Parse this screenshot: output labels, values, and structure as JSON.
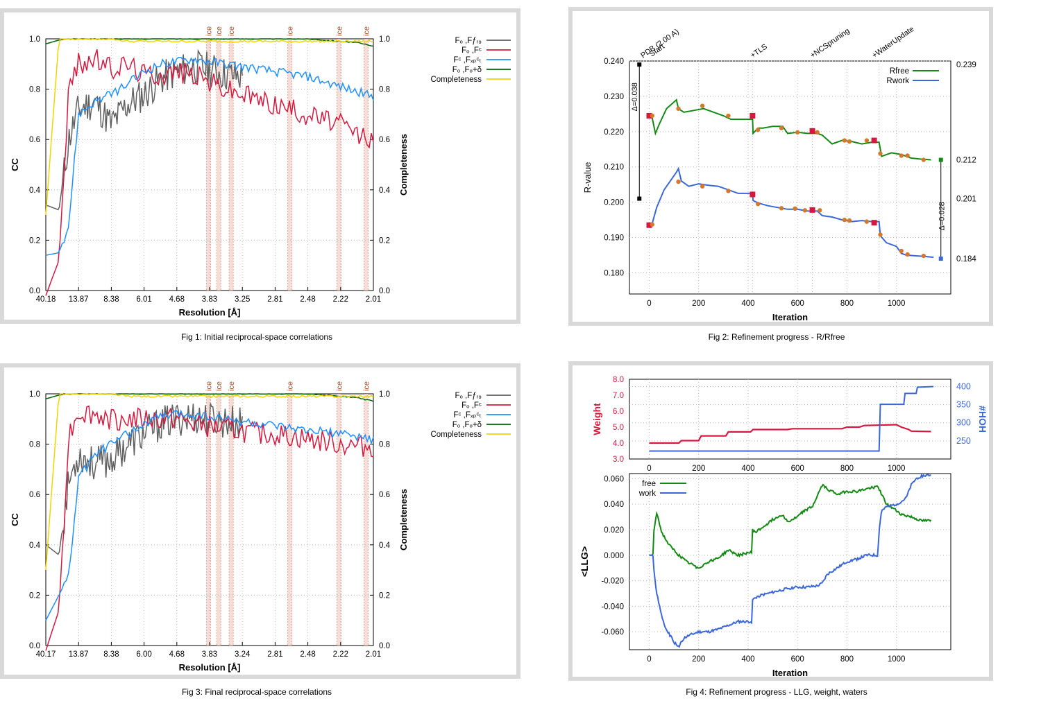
{
  "colors": {
    "gray": "#606060",
    "red": "#d6183e",
    "blue": "#1e90ff",
    "green": "#006400",
    "yellow": "#f3d400",
    "rfree": "#138a13",
    "rwork": "#3c67db",
    "orange": "#d2792d",
    "ice_text": "#a0522d",
    "ice_band": "#f1d6cf",
    "weight_red": "#d6183e",
    "hoh_blue": "#3c67db",
    "grid": "#b5b5b5"
  },
  "captions": {
    "fig1": "Fig 1:  Initial reciprocal-space correlations",
    "fig2": "Fig 2:  Refinement progress - R/Rfree",
    "fig3": "Fig 3:  Final reciprocal-space correlations",
    "fig4": "Fig 4:  Refinement progress - LLG, weight, waters"
  },
  "fig1": {
    "xlabel": "Resolution [Å]",
    "ylabel": "CC",
    "y2label": "Completeness",
    "xticks": [
      "40.18",
      "13.87",
      "8.38",
      "6.01",
      "4.68",
      "3.83",
      "3.25",
      "2.81",
      "2.48",
      "2.22",
      "2.01"
    ],
    "yticks": [
      "0.0",
      "0.2",
      "0.4",
      "0.6",
      "0.8",
      "1.0"
    ],
    "ice_label": "ice",
    "legend": [
      "Fₒ ,Fƒᵣ₉",
      "Fₒ ,Fᶜ",
      "Fᶜ ,Fₓₚᶜₜ",
      "Fₒ ,Fₒ+δ",
      "Completeness"
    ]
  },
  "fig3": {
    "xlabel": "Resolution [Å]",
    "ylabel": "CC",
    "y2label": "Completeness",
    "xticks": [
      "40.17",
      "13.87",
      "8.38",
      "6.00",
      "4.68",
      "3.83",
      "3.24",
      "2.81",
      "2.48",
      "2.22",
      "2.01"
    ],
    "yticks": [
      "0.0",
      "0.2",
      "0.4",
      "0.6",
      "0.8",
      "1.0"
    ],
    "ice_label": "ice",
    "legend": [
      "Fₒ ,Fƒᵣ₉",
      "Fₒ ,Fᶜ",
      "Fᶜ ,Fₓₚᶜₜ",
      "Fₒ ,Fₒ+δ",
      "Completeness"
    ]
  },
  "fig2": {
    "xlabel": "Iteration",
    "ylabel": "R-value",
    "xticks": [
      "0",
      "200",
      "400",
      "600",
      "800",
      "1000"
    ],
    "yticks": [
      "0.180",
      "0.190",
      "0.200",
      "0.210",
      "0.220",
      "0.230",
      "0.240"
    ],
    "legend": [
      "Rfree",
      "Rwork"
    ],
    "top_labels": [
      "PDB (2.00 A)",
      "Start",
      "+TLS",
      "+NCSpruning",
      "+WaterUpdate"
    ],
    "right_values": [
      "0.239",
      "0.212",
      "0.201",
      "0.184"
    ],
    "delta_left": "Δ=0.038",
    "delta_right": "Δ=0.028"
  },
  "fig4": {
    "xlabel": "Iteration",
    "ylabel_llg": "<LLG>",
    "ylabel_weight": "Weight",
    "ylabel_hoh": "#HOH",
    "xticks": [
      "0",
      "200",
      "400",
      "600",
      "800",
      "1000"
    ],
    "weight_ticks": [
      "3.0",
      "4.0",
      "5.0",
      "6.0",
      "7.0",
      "8.0"
    ],
    "hoh_ticks": [
      "250",
      "300",
      "350",
      "400"
    ],
    "llg_ticks": [
      "-0.060",
      "-0.040",
      "-0.020",
      "0.000",
      "0.020",
      "0.040",
      "0.060"
    ],
    "legend": [
      "free",
      "work"
    ]
  },
  "chart_data": [
    {
      "type": "line",
      "title": "Fig 1:  Initial reciprocal-space correlations",
      "xlabel": "Resolution [Å]",
      "ylabel": "CC",
      "y2label": "Completeness",
      "x_tick_labels": [
        "40.18",
        "13.87",
        "8.38",
        "6.01",
        "4.68",
        "3.83",
        "3.25",
        "2.81",
        "2.48",
        "2.22",
        "2.01"
      ],
      "ylim": [
        0.0,
        1.0
      ],
      "ice_rings_resolution": [
        3.9,
        3.67,
        3.44,
        2.67,
        2.25,
        2.07
      ],
      "x_bin_fraction": [
        0.0,
        0.04,
        0.07,
        0.1,
        0.15,
        0.2,
        0.25,
        0.3,
        0.35,
        0.4,
        0.45,
        0.5,
        0.55,
        0.6,
        0.65,
        0.7,
        0.75,
        0.8,
        0.85,
        0.9,
        0.95,
        1.0
      ],
      "series": [
        {
          "name": "Fₒ ,Fƒᵣ₉",
          "values": [
            0.34,
            0.32,
            0.6,
            0.72,
            0.75,
            0.66,
            0.74,
            0.78,
            0.84,
            0.87,
            0.89,
            0.88,
            0.86,
            0.85
          ]
        },
        {
          "name": "Fₒ ,Fᶜ",
          "values": [
            -0.02,
            0.12,
            0.8,
            0.9,
            0.92,
            0.88,
            0.9,
            0.86,
            0.86,
            0.87,
            0.86,
            0.83,
            0.8,
            0.78,
            0.76,
            0.74,
            0.72,
            0.7,
            0.68,
            0.66,
            0.62,
            0.6
          ]
        },
        {
          "name": "Fᶜ ,Fₓₚᶜₜ",
          "values": [
            0.14,
            0.15,
            0.26,
            0.7,
            0.75,
            0.78,
            0.82,
            0.87,
            0.9,
            0.91,
            0.92,
            0.91,
            0.9,
            0.89,
            0.88,
            0.87,
            0.86,
            0.85,
            0.83,
            0.81,
            0.79,
            0.77
          ]
        },
        {
          "name": "Fₒ ,Fₒ+δ",
          "values": [
            0.98,
            0.995,
            1.0,
            1.0,
            1.0,
            1.0,
            1.0,
            1.0,
            1.0,
            1.0,
            1.0,
            1.0,
            1.0,
            1.0,
            1.0,
            1.0,
            1.0,
            1.0,
            0.995,
            0.99,
            0.985,
            0.97
          ]
        },
        {
          "name": "Completeness",
          "values": [
            0.3,
            1.0,
            1.0,
            1.0,
            1.0,
            1.0,
            0.99,
            0.99,
            0.99,
            0.99,
            0.99,
            0.99,
            0.99,
            0.99,
            0.99,
            0.99,
            0.99,
            0.99,
            0.99,
            0.99,
            0.99,
            0.99
          ]
        }
      ]
    },
    {
      "type": "line",
      "title": "Fig 2:  Refinement progress - R/Rfree",
      "xlabel": "Iteration",
      "ylabel": "R-value",
      "xlim": [
        -80,
        1220
      ],
      "ylim": [
        0.174,
        0.24
      ],
      "series": [
        {
          "name": "Rfree",
          "x": [
            0,
            10,
            25,
            40,
            70,
            110,
            118,
            140,
            180,
            220,
            260,
            300,
            330,
            360,
            418,
            420,
            440,
            460,
            500,
            540,
            560,
            600,
            640,
            680,
            700,
            740,
            780,
            820,
            860,
            900,
            930,
            940,
            980,
            1020,
            1060,
            1100,
            1140
          ],
          "values": [
            0.2245,
            0.2245,
            0.2195,
            0.222,
            0.2265,
            0.229,
            0.2265,
            0.2255,
            0.226,
            0.2265,
            0.2255,
            0.2245,
            0.2235,
            0.2235,
            0.2235,
            0.2195,
            0.221,
            0.221,
            0.2215,
            0.2215,
            0.2195,
            0.2198,
            0.2195,
            0.2195,
            0.219,
            0.2165,
            0.2175,
            0.2172,
            0.2165,
            0.217,
            0.217,
            0.213,
            0.214,
            0.2135,
            0.2125,
            0.2122,
            0.212
          ]
        },
        {
          "name": "Rwork",
          "x": [
            0,
            10,
            30,
            60,
            100,
            110,
            118,
            130,
            160,
            200,
            240,
            280,
            320,
            360,
            418,
            420,
            440,
            480,
            520,
            560,
            600,
            640,
            680,
            700,
            740,
            780,
            820,
            860,
            900,
            930,
            935,
            960,
            1000,
            1020,
            1040,
            1080,
            1120,
            1150
          ],
          "values": [
            0.1935,
            0.1935,
            0.1985,
            0.2035,
            0.2075,
            0.2085,
            0.2095,
            0.206,
            0.2045,
            0.2052,
            0.2048,
            0.2045,
            0.2035,
            0.2025,
            0.2025,
            0.2005,
            0.1998,
            0.199,
            0.1985,
            0.198,
            0.198,
            0.1975,
            0.1975,
            0.1962,
            0.1958,
            0.195,
            0.1945,
            0.1948,
            0.1945,
            0.1945,
            0.1905,
            0.1885,
            0.1875,
            0.1855,
            0.185,
            0.1848,
            0.1846,
            0.1844
          ]
        }
      ],
      "markers_rfree": {
        "x": [
          0,
          418,
          660,
          910
        ],
        "values": [
          0.2245,
          0.2245,
          0.2202,
          0.2175
        ]
      },
      "markers_rwork": {
        "x": [
          0,
          418,
          660,
          910
        ],
        "values": [
          0.1935,
          0.2022,
          0.1978,
          0.1942
        ]
      },
      "dots_rfree": {
        "x": [
          12,
          118,
          215,
          320,
          440,
          535,
          600,
          680,
          790,
          810,
          880,
          935,
          1020,
          1045,
          1110
        ],
        "values": [
          0.2245,
          0.2265,
          0.2273,
          0.2245,
          0.2205,
          0.221,
          0.2198,
          0.2198,
          0.2175,
          0.2172,
          0.2175,
          0.2138,
          0.2132,
          0.2132,
          0.212
        ]
      },
      "dots_rwork": {
        "x": [
          12,
          118,
          215,
          320,
          440,
          535,
          590,
          630,
          690,
          790,
          810,
          880,
          935,
          1020,
          1045,
          1110
        ],
        "values": [
          0.1937,
          0.2058,
          0.2045,
          0.2032,
          0.1995,
          0.1983,
          0.1982,
          0.1977,
          0.1977,
          0.195,
          0.1948,
          0.1945,
          0.1908,
          0.1862,
          0.1852,
          0.1848
        ]
      },
      "reference": {
        "pdb_rfree": 0.239,
        "pdb_rwork": 0.201,
        "final_rfree": 0.212,
        "final_rwork": 0.184
      }
    },
    {
      "type": "line",
      "title": "Fig 3:  Final reciprocal-space correlations",
      "xlabel": "Resolution [Å]",
      "ylabel": "CC",
      "y2label": "Completeness",
      "x_tick_labels": [
        "40.17",
        "13.87",
        "8.38",
        "6.00",
        "4.68",
        "3.83",
        "3.24",
        "2.81",
        "2.48",
        "2.22",
        "2.01"
      ],
      "ylim": [
        0.0,
        1.0
      ],
      "ice_rings_resolution": [
        3.9,
        3.67,
        3.44,
        2.67,
        2.25,
        2.07
      ],
      "x_bin_fraction": [
        0.0,
        0.04,
        0.07,
        0.1,
        0.15,
        0.2,
        0.25,
        0.3,
        0.35,
        0.4,
        0.45,
        0.5,
        0.55,
        0.6,
        0.65,
        0.7,
        0.75,
        0.8,
        0.85,
        0.9,
        0.95,
        1.0
      ],
      "series": [
        {
          "name": "Fₒ ,Fƒᵣ₉",
          "values": [
            0.4,
            0.36,
            0.65,
            0.76,
            0.72,
            0.74,
            0.8,
            0.84,
            0.88,
            0.9,
            0.91,
            0.9,
            0.89,
            0.88
          ]
        },
        {
          "name": "Fₒ ,Fᶜ",
          "values": [
            -0.02,
            0.14,
            0.84,
            0.93,
            0.92,
            0.9,
            0.9,
            0.9,
            0.9,
            0.9,
            0.88,
            0.87,
            0.86,
            0.85,
            0.84,
            0.84,
            0.83,
            0.82,
            0.81,
            0.8,
            0.79,
            0.79
          ]
        },
        {
          "name": "Fᶜ ,Fₓₚᶜₜ",
          "values": [
            0.1,
            0.2,
            0.28,
            0.66,
            0.76,
            0.8,
            0.84,
            0.88,
            0.91,
            0.92,
            0.92,
            0.91,
            0.9,
            0.89,
            0.88,
            0.87,
            0.86,
            0.85,
            0.85,
            0.84,
            0.83,
            0.82
          ]
        },
        {
          "name": "Fₒ ,Fₒ+δ",
          "values": [
            0.98,
            0.995,
            1.0,
            1.0,
            1.0,
            1.0,
            1.0,
            1.0,
            1.0,
            1.0,
            1.0,
            1.0,
            1.0,
            1.0,
            1.0,
            1.0,
            1.0,
            1.0,
            0.995,
            0.99,
            0.985,
            0.97
          ]
        },
        {
          "name": "Completeness",
          "values": [
            0.3,
            1.0,
            1.0,
            1.0,
            1.0,
            1.0,
            0.99,
            0.99,
            0.99,
            0.99,
            0.99,
            0.99,
            0.99,
            0.99,
            0.99,
            0.99,
            0.99,
            0.99,
            0.99,
            0.99,
            0.99,
            0.99
          ]
        }
      ]
    },
    {
      "type": "line",
      "title": "Fig 4:  Refinement progress - LLG, weight, waters",
      "xlabel": "Iteration",
      "xlim": [
        -80,
        1220
      ],
      "weight_ylim": [
        3.0,
        8.0
      ],
      "hoh_ylim": [
        200,
        420
      ],
      "llg_ylim": [
        -0.074,
        0.064
      ],
      "series": [
        {
          "name": "Weight",
          "x": [
            0,
            120,
            130,
            200,
            210,
            310,
            320,
            410,
            420,
            560,
            580,
            780,
            800,
            850,
            870,
            1000,
            1020,
            1050,
            1060,
            1140
          ],
          "values": [
            4.0,
            4.0,
            4.15,
            4.15,
            4.45,
            4.45,
            4.7,
            4.7,
            4.85,
            4.85,
            4.9,
            4.9,
            5.0,
            5.0,
            5.1,
            5.15,
            5.0,
            4.85,
            4.75,
            4.72
          ]
        },
        {
          "name": "#HOH",
          "x": [
            0,
            930,
            935,
            1030,
            1035,
            1080,
            1085,
            1150
          ],
          "values": [
            222,
            222,
            351,
            351,
            381,
            381,
            398,
            400
          ]
        },
        {
          "name": "free",
          "x": [
            0,
            15,
            18,
            30,
            50,
            80,
            120,
            150,
            180,
            200,
            240,
            280,
            320,
            360,
            400,
            415,
            418,
            430,
            460,
            500,
            540,
            560,
            600,
            620,
            660,
            700,
            720,
            760,
            800,
            840,
            880,
            925,
            960,
            1000,
            1020,
            1060,
            1100,
            1140
          ],
          "values": [
            0.0,
            0.0,
            0.018,
            0.034,
            0.018,
            0.008,
            0.0,
            -0.005,
            -0.008,
            -0.01,
            -0.005,
            -0.002,
            0.004,
            0.0,
            0.002,
            0.002,
            0.02,
            0.018,
            0.022,
            0.028,
            0.032,
            0.026,
            0.03,
            0.034,
            0.038,
            0.055,
            0.052,
            0.048,
            0.05,
            0.05,
            0.052,
            0.054,
            0.04,
            0.035,
            0.032,
            0.03,
            0.027,
            0.027
          ]
        },
        {
          "name": "work",
          "x": [
            0,
            15,
            18,
            30,
            60,
            100,
            118,
            140,
            160,
            200,
            240,
            280,
            320,
            360,
            400,
            415,
            418,
            440,
            480,
            520,
            560,
            600,
            640,
            680,
            700,
            720,
            760,
            800,
            840,
            880,
            925,
            930,
            940,
            960,
            1000,
            1020,
            1040,
            1060,
            1080,
            1100,
            1140
          ],
          "values": [
            0.0,
            0.0,
            -0.01,
            -0.03,
            -0.055,
            -0.068,
            -0.072,
            -0.065,
            -0.063,
            -0.06,
            -0.06,
            -0.058,
            -0.055,
            -0.052,
            -0.052,
            -0.052,
            -0.035,
            -0.032,
            -0.03,
            -0.028,
            -0.026,
            -0.025,
            -0.025,
            -0.024,
            -0.022,
            -0.015,
            -0.01,
            -0.005,
            -0.003,
            0.0,
            0.0,
            0.02,
            0.035,
            0.038,
            0.04,
            0.042,
            0.045,
            0.055,
            0.06,
            0.062,
            0.063
          ]
        }
      ]
    }
  ]
}
